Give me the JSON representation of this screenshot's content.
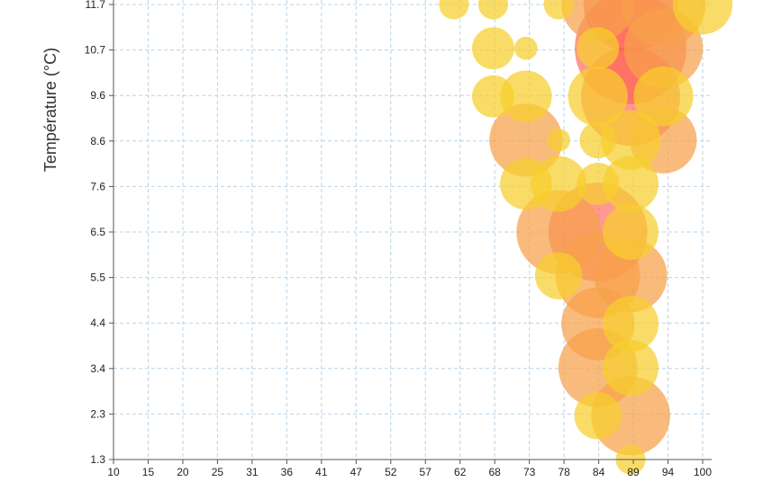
{
  "chart_data": {
    "type": "scatter",
    "title": "",
    "xlabel": "",
    "ylabel": "Température (°C)",
    "x_ticks": [
      "10",
      "15",
      "20",
      "25",
      "31",
      "36",
      "41",
      "47",
      "52",
      "57",
      "62",
      "68",
      "73",
      "78",
      "84",
      "89",
      "94",
      "100"
    ],
    "y_ticks": [
      "1.3",
      "2.3",
      "3.4",
      "4.4",
      "5.5",
      "6.5",
      "7.6",
      "8.6",
      "9.6",
      "10.7",
      "11.7"
    ],
    "xlim": [
      10,
      100
    ],
    "ylim": [
      1.3,
      11.7
    ],
    "grid": true,
    "size_encoding": "bubble radius proportional to value",
    "color_scale": [
      "#f7cf2c",
      "#f7a14a",
      "#ff5a4a"
    ],
    "points": [
      {
        "x": 62,
        "y": 11.7,
        "v": 1
      },
      {
        "x": 68,
        "y": 11.7,
        "v": 1
      },
      {
        "x": 78,
        "y": 11.7,
        "v": 1
      },
      {
        "x": 84,
        "y": 11.7,
        "v": 6
      },
      {
        "x": 89,
        "y": 11.7,
        "v": 10
      },
      {
        "x": 94,
        "y": 11.7,
        "v": 8
      },
      {
        "x": 100,
        "y": 11.7,
        "v": 4
      },
      {
        "x": 68,
        "y": 10.7,
        "v": 2
      },
      {
        "x": 73,
        "y": 10.7,
        "v": 0.6
      },
      {
        "x": 84,
        "y": 10.7,
        "v": 2
      },
      {
        "x": 89,
        "y": 10.7,
        "v": 14
      },
      {
        "x": 94,
        "y": 10.7,
        "v": 7
      },
      {
        "x": 68,
        "y": 9.6,
        "v": 2
      },
      {
        "x": 73,
        "y": 9.6,
        "v": 3
      },
      {
        "x": 84,
        "y": 9.6,
        "v": 4
      },
      {
        "x": 89,
        "y": 9.6,
        "v": 11
      },
      {
        "x": 94,
        "y": 9.6,
        "v": 4
      },
      {
        "x": 73,
        "y": 8.6,
        "v": 6
      },
      {
        "x": 78,
        "y": 8.6,
        "v": 0.6
      },
      {
        "x": 84,
        "y": 8.6,
        "v": 1.5
      },
      {
        "x": 89,
        "y": 8.6,
        "v": 4
      },
      {
        "x": 94,
        "y": 8.6,
        "v": 5
      },
      {
        "x": 73,
        "y": 7.6,
        "v": 3
      },
      {
        "x": 78,
        "y": 7.6,
        "v": 3.5
      },
      {
        "x": 84,
        "y": 7.6,
        "v": 2
      },
      {
        "x": 89,
        "y": 7.6,
        "v": 3.5
      },
      {
        "x": 78,
        "y": 6.5,
        "v": 8
      },
      {
        "x": 84,
        "y": 6.5,
        "v": 11
      },
      {
        "x": 89,
        "y": 6.5,
        "v": 3.5
      },
      {
        "x": 78,
        "y": 5.5,
        "v": 2.5
      },
      {
        "x": 84,
        "y": 5.5,
        "v": 8
      },
      {
        "x": 89,
        "y": 5.5,
        "v": 6
      },
      {
        "x": 84,
        "y": 4.4,
        "v": 6
      },
      {
        "x": 89,
        "y": 4.4,
        "v": 3.5
      },
      {
        "x": 84,
        "y": 3.4,
        "v": 7
      },
      {
        "x": 89,
        "y": 3.4,
        "v": 3.5
      },
      {
        "x": 84,
        "y": 2.3,
        "v": 2.5
      },
      {
        "x": 89,
        "y": 2.3,
        "v": 7
      },
      {
        "x": 89,
        "y": 1.3,
        "v": 1
      }
    ]
  }
}
